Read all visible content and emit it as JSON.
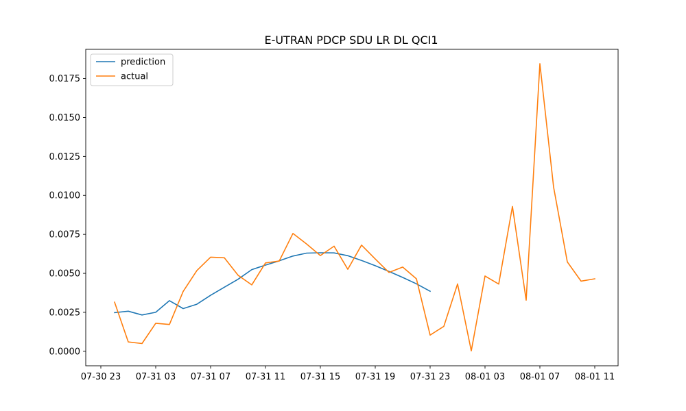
{
  "chart_data": {
    "type": "line",
    "title": "E-UTRAN PDCP SDU LR DL QCI1",
    "xlabel": "",
    "ylabel": "",
    "x_unit": "hours",
    "x_ticks": [
      {
        "t": -1,
        "label": "07-30 23"
      },
      {
        "t": 3,
        "label": "07-31 03"
      },
      {
        "t": 7,
        "label": "07-31 07"
      },
      {
        "t": 11,
        "label": "07-31 11"
      },
      {
        "t": 15,
        "label": "07-31 15"
      },
      {
        "t": 19,
        "label": "07-31 19"
      },
      {
        "t": 23,
        "label": "07-31 23"
      },
      {
        "t": 27,
        "label": "08-01 03"
      },
      {
        "t": 31,
        "label": "08-01 07"
      },
      {
        "t": 35,
        "label": "08-01 11"
      }
    ],
    "y_ticks": [
      0.0,
      0.0025,
      0.005,
      0.0075,
      0.01,
      0.0125,
      0.015,
      0.0175
    ],
    "y_tick_labels": [
      "0.0000",
      "0.0025",
      "0.0050",
      "0.0075",
      "0.0100",
      "0.0125",
      "0.0150",
      "0.0175"
    ],
    "xlim": [
      -2.1,
      36.7
    ],
    "ylim": [
      -0.00093,
      0.01937
    ],
    "legend_position": "upper-left",
    "grid": false,
    "series": [
      {
        "name": "prediction",
        "color": "#1f77b4",
        "x": [
          0,
          1,
          2,
          3,
          4,
          5,
          6,
          7,
          8,
          9,
          10,
          11,
          12,
          13,
          14,
          15,
          16,
          17,
          18,
          19,
          20,
          21,
          22,
          23
        ],
        "values": [
          0.00248,
          0.00257,
          0.00233,
          0.0025,
          0.00325,
          0.00274,
          0.00302,
          0.00359,
          0.00411,
          0.00462,
          0.00524,
          0.00553,
          0.0058,
          0.00611,
          0.0063,
          0.00632,
          0.00631,
          0.00613,
          0.00583,
          0.00549,
          0.00512,
          0.00474,
          0.00433,
          0.00385
        ]
      },
      {
        "name": "actual",
        "color": "#ff7f0e",
        "x": [
          0,
          1,
          2,
          3,
          4,
          5,
          6,
          7,
          8,
          9,
          10,
          11,
          12,
          13,
          14,
          15,
          16,
          17,
          18,
          19,
          20,
          21,
          22,
          23,
          24,
          25,
          26,
          27,
          28,
          29,
          30,
          31,
          32,
          33,
          34,
          35
        ],
        "values": [
          0.00315,
          0.0006,
          0.0005,
          0.0018,
          0.00172,
          0.00384,
          0.00518,
          0.00604,
          0.006,
          0.00488,
          0.00426,
          0.00567,
          0.00579,
          0.00756,
          0.00688,
          0.00614,
          0.00674,
          0.00526,
          0.00681,
          0.00592,
          0.00506,
          0.0054,
          0.00465,
          0.00104,
          0.0016,
          0.00432,
          3e-05,
          0.00483,
          0.00431,
          0.00929,
          0.00328,
          0.01845,
          0.01053,
          0.00573,
          0.0045,
          0.00465
        ]
      }
    ]
  }
}
